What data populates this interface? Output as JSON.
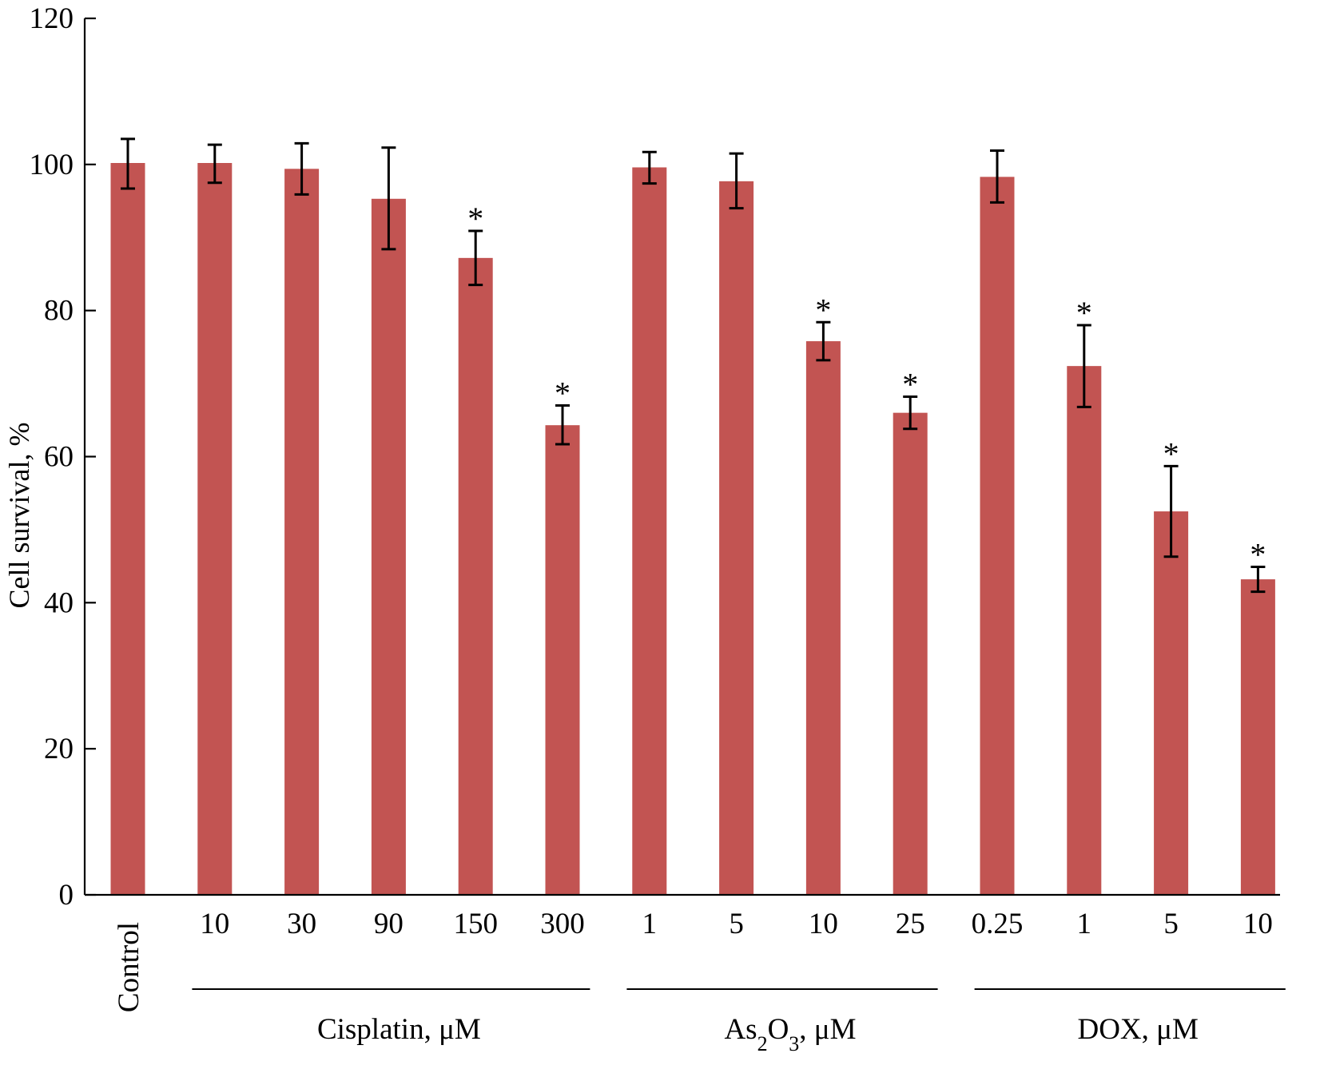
{
  "chart_data": {
    "type": "bar",
    "ylabel": "Cell survival, %",
    "ylim": [
      0,
      120
    ],
    "yticks": [
      0,
      20,
      40,
      60,
      80,
      100,
      120
    ],
    "bar_color": "#c25452",
    "categories": [
      "Control",
      "10",
      "30",
      "90",
      "150",
      "300",
      "1",
      "5",
      "10",
      "25",
      "0.25",
      "1",
      "5",
      "10"
    ],
    "values": [
      100.2,
      100.2,
      99.4,
      95.3,
      87.2,
      64.3,
      99.6,
      97.7,
      75.8,
      66.0,
      98.3,
      72.4,
      52.5,
      43.2
    ],
    "error_plus": [
      3.3,
      2.5,
      3.5,
      7.0,
      3.7,
      2.7,
      2.1,
      3.8,
      2.6,
      2.2,
      3.6,
      5.6,
      6.2,
      1.7
    ],
    "error_minus": [
      3.5,
      2.7,
      3.5,
      6.9,
      3.7,
      2.6,
      2.2,
      3.7,
      2.6,
      2.2,
      3.5,
      5.6,
      6.2,
      1.7
    ],
    "significant": [
      false,
      false,
      false,
      false,
      true,
      true,
      false,
      false,
      true,
      true,
      false,
      true,
      true,
      true
    ],
    "significance_marker": "*",
    "groups": [
      {
        "label": "Cisplatin, μM",
        "start": 1,
        "end": 5
      },
      {
        "label": "As2O3, μM",
        "start": 6,
        "end": 9
      },
      {
        "label": "DOX, μM",
        "start": 10,
        "end": 13
      }
    ],
    "control_label": "Control"
  }
}
